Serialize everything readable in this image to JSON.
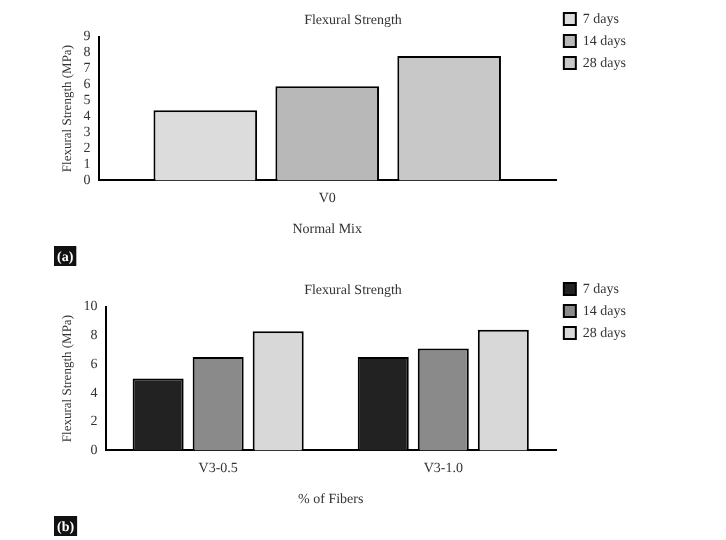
{
  "chart_data": [
    {
      "type": "bar",
      "title": "Flexural Strength",
      "xlabel": "Normal Mix",
      "ylabel": "Flexural Strength (MPa)",
      "categories": [
        "V0"
      ],
      "series": [
        {
          "name": "7 days",
          "color": "#dcdcdc",
          "values": [
            4.4
          ]
        },
        {
          "name": "14 days",
          "color": "#b8b8b8",
          "values": [
            5.9
          ]
        },
        {
          "name": "28 days",
          "color": "#c8c8c8",
          "values": [
            7.8
          ]
        }
      ],
      "ylim": [
        0,
        9
      ],
      "yticks": [
        0,
        1,
        2,
        3,
        4,
        5,
        6,
        7,
        8,
        9
      ],
      "grid": false,
      "legend": "top right",
      "annotations": [
        "(a)"
      ]
    },
    {
      "type": "bar",
      "title": "Flexural Strength",
      "xlabel": "% of Fibers",
      "ylabel": "Flexural Strength (MPa)",
      "categories": [
        "V3-0.5",
        "V3-1.0"
      ],
      "series": [
        {
          "name": "7 days",
          "color": "#222222",
          "values": [
            5.0,
            6.5
          ]
        },
        {
          "name": "14 days",
          "color": "#8a8a8a",
          "values": [
            6.5,
            7.1
          ]
        },
        {
          "name": "28 days",
          "color": "#d8d8d8",
          "values": [
            8.3,
            8.4
          ]
        }
      ],
      "ylim": [
        0,
        10
      ],
      "yticks": [
        0,
        2,
        4,
        6,
        8,
        10
      ],
      "grid": false,
      "legend": "top right",
      "annotations": [
        "(b)"
      ]
    }
  ]
}
